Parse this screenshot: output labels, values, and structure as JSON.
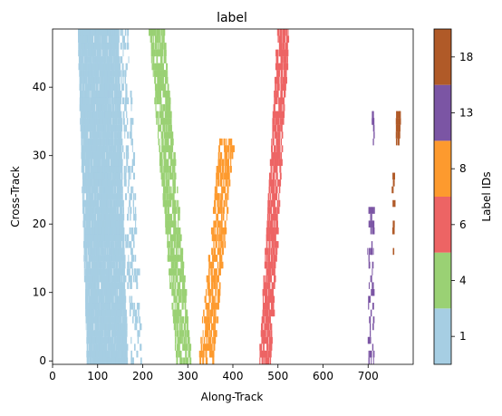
{
  "chart_data": {
    "type": "heatmap",
    "title": "label",
    "xlabel": "Along-Track",
    "ylabel": "Cross-Track",
    "xlim": [
      0,
      800
    ],
    "ylim": [
      -0.5,
      48.5
    ],
    "xticks": [
      0,
      100,
      200,
      300,
      400,
      500,
      600,
      700
    ],
    "yticks": [
      0,
      10,
      20,
      30,
      40
    ],
    "colorbar": {
      "label": "Label IDs",
      "tick_labels": [
        "1",
        "4",
        "6",
        "8",
        "13",
        "18"
      ],
      "colors": [
        "#a6cee3",
        "#9ad174",
        "#ed6464",
        "#fd9a2e",
        "#7b55a4",
        "#b05a28"
      ]
    },
    "series": [
      {
        "name": "1",
        "color": "#a6cee3",
        "clusters": [
          {
            "x_start": 120,
            "x_end": 100,
            "half_width": 44,
            "y_from": 0,
            "y_to": 48,
            "density": 0.85
          },
          {
            "x_start": 185,
            "x_end": 155,
            "half_width": 12,
            "y_from": 0,
            "y_to": 48,
            "density": 0.18
          }
        ]
      },
      {
        "name": "4",
        "color": "#9ad174",
        "clusters": [
          {
            "x_start": 290,
            "x_end": 230,
            "half_width": 16,
            "y_from": 0,
            "y_to": 48,
            "density": 0.45
          }
        ]
      },
      {
        "name": "6",
        "color": "#ed6464",
        "clusters": [
          {
            "x_start": 470,
            "x_end": 510,
            "half_width": 12,
            "y_from": 0,
            "y_to": 48,
            "density": 0.5
          }
        ]
      },
      {
        "name": "8",
        "color": "#fd9a2e",
        "clusters": [
          {
            "x_start": 340,
            "x_end": 385,
            "half_width": 16,
            "y_from": 0,
            "y_to": 32,
            "density": 0.35
          }
        ]
      },
      {
        "name": "13",
        "color": "#7b55a4",
        "clusters": [
          {
            "x_start": 705,
            "x_end": 705,
            "half_width": 6,
            "y_from": 0,
            "y_to": 22,
            "density": 0.2
          },
          {
            "x_start": 710,
            "x_end": 710,
            "half_width": 2,
            "y_from": 32,
            "y_to": 36,
            "density": 0.3
          }
        ]
      },
      {
        "name": "18",
        "color": "#b05a28",
        "clusters": [
          {
            "x_start": 765,
            "x_end": 765,
            "half_width": 3,
            "y_from": 32,
            "y_to": 36,
            "density": 0.9
          },
          {
            "x_start": 755,
            "x_end": 755,
            "half_width": 2,
            "y_from": 14,
            "y_to": 28,
            "density": 0.12
          }
        ]
      }
    ]
  }
}
